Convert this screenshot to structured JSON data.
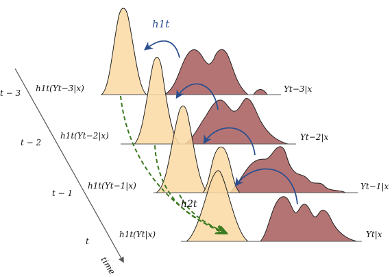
{
  "colors": {
    "orange_fill": "#fbd9a3",
    "orange_stroke": "#222222",
    "maroon_fill": "#b57474",
    "maroon_stroke": "#222222",
    "blue_arrow": "#2b4f8e",
    "green_dash": "#3a7a1f",
    "baseline": "#555555",
    "axis": "#555555"
  },
  "time_axis": {
    "label": "time",
    "ticks": [
      {
        "label": "t − 3"
      },
      {
        "label": "t − 2"
      },
      {
        "label": "t − 1"
      },
      {
        "label": "t"
      }
    ]
  },
  "rows": [
    {
      "h_label": "h1t(Yt−3|x)",
      "y_label": "Yt−3|x"
    },
    {
      "h_label": "h1t(Yt−2|x)",
      "y_label": "Yt−2|x"
    },
    {
      "h_label": "h1t(Yt−1|x)",
      "y_label": "Yt−1|x"
    },
    {
      "h_label": "h1t(Yt|x)",
      "y_label": "Yt|x"
    }
  ],
  "annotations": {
    "h1_label": "h1t",
    "h2_label": "h2t"
  }
}
